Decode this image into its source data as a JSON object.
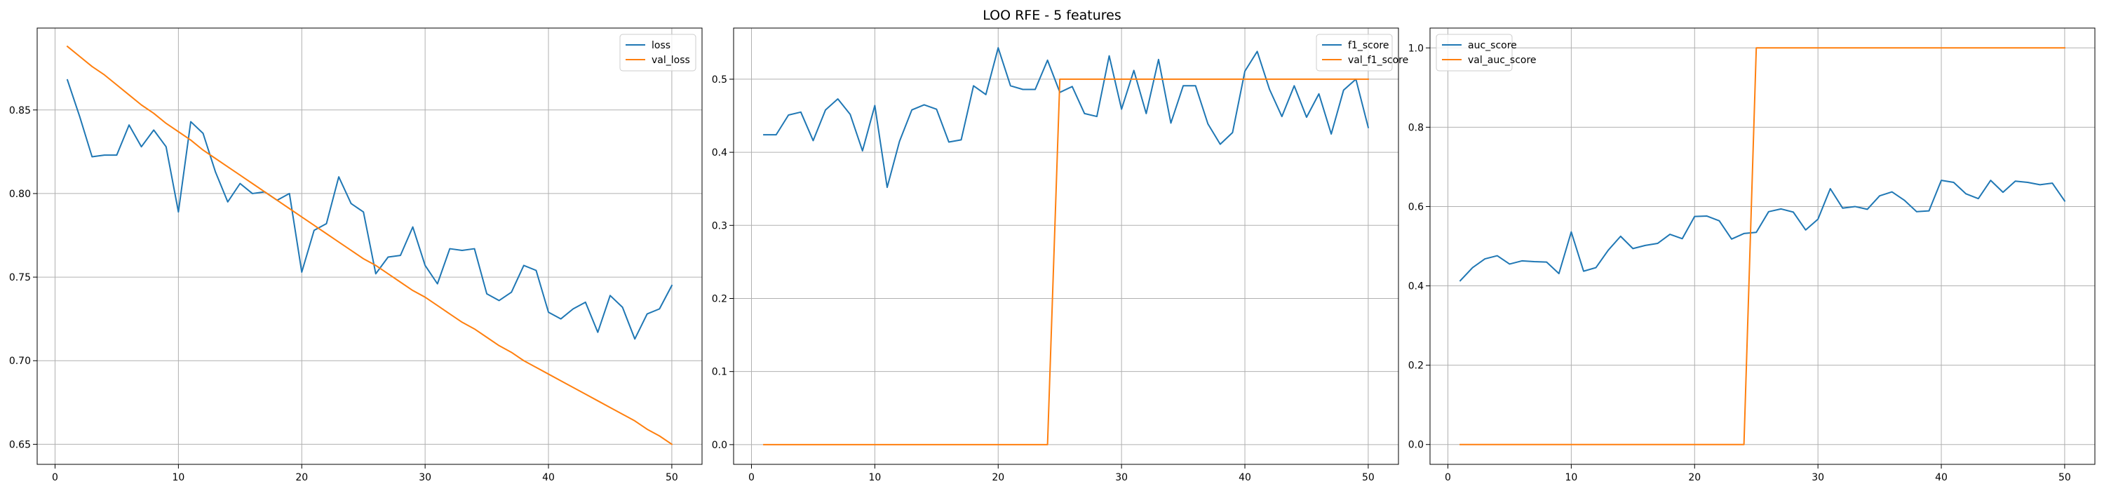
{
  "figure": {
    "title": "LOO RFE - 5 features",
    "colors": {
      "series1": "#1f77b4",
      "series2": "#ff7f0e",
      "grid": "#b0b0b0",
      "axis": "#000000"
    }
  },
  "chart_data": [
    {
      "type": "line",
      "xlim": [
        -1.45,
        52.45
      ],
      "ylim": [
        0.638,
        0.899
      ],
      "xticks": [
        0,
        10,
        20,
        30,
        40,
        50
      ],
      "yticks": [
        0.65,
        0.7,
        0.75,
        0.8,
        0.85
      ],
      "ytick_labels": [
        "0.65",
        "0.70",
        "0.75",
        "0.80",
        "0.85"
      ],
      "grid": true,
      "legend_position": "upper right",
      "x": [
        1,
        2,
        3,
        4,
        5,
        6,
        7,
        8,
        9,
        10,
        11,
        12,
        13,
        14,
        15,
        16,
        17,
        18,
        19,
        20,
        21,
        22,
        23,
        24,
        25,
        26,
        27,
        28,
        29,
        30,
        31,
        32,
        33,
        34,
        35,
        36,
        37,
        38,
        39,
        40,
        41,
        42,
        43,
        44,
        45,
        46,
        47,
        48,
        49,
        50
      ],
      "series": [
        {
          "name": "loss",
          "values": [
            0.868,
            0.846,
            0.822,
            0.823,
            0.823,
            0.841,
            0.828,
            0.838,
            0.828,
            0.789,
            0.843,
            0.836,
            0.813,
            0.795,
            0.806,
            0.8,
            0.801,
            0.796,
            0.8,
            0.753,
            0.778,
            0.782,
            0.81,
            0.794,
            0.789,
            0.752,
            0.762,
            0.763,
            0.78,
            0.757,
            0.746,
            0.767,
            0.766,
            0.767,
            0.74,
            0.736,
            0.741,
            0.757,
            0.754,
            0.729,
            0.725,
            0.731,
            0.735,
            0.717,
            0.739,
            0.732,
            0.713,
            0.728,
            0.731,
            0.745
          ]
        },
        {
          "name": "val_loss",
          "values": [
            0.888,
            0.882,
            0.876,
            0.871,
            0.865,
            0.859,
            0.853,
            0.848,
            0.842,
            0.837,
            0.832,
            0.826,
            0.821,
            0.816,
            0.811,
            0.806,
            0.801,
            0.796,
            0.791,
            0.786,
            0.781,
            0.776,
            0.771,
            0.766,
            0.761,
            0.757,
            0.752,
            0.747,
            0.742,
            0.738,
            0.733,
            0.728,
            0.723,
            0.719,
            0.714,
            0.709,
            0.705,
            0.7,
            0.696,
            0.692,
            0.688,
            0.684,
            0.68,
            0.676,
            0.672,
            0.668,
            0.664,
            0.659,
            0.655,
            0.65
          ]
        }
      ]
    },
    {
      "type": "line",
      "xlim": [
        -1.45,
        52.45
      ],
      "ylim": [
        -0.027,
        0.57
      ],
      "xticks": [
        0,
        10,
        20,
        30,
        40,
        50
      ],
      "yticks": [
        0.0,
        0.1,
        0.2,
        0.3,
        0.4,
        0.5
      ],
      "ytick_labels": [
        "0.0",
        "0.1",
        "0.2",
        "0.3",
        "0.4",
        "0.5"
      ],
      "grid": true,
      "legend_position": "upper right",
      "x": [
        1,
        2,
        3,
        4,
        5,
        6,
        7,
        8,
        9,
        10,
        11,
        12,
        13,
        14,
        15,
        16,
        17,
        18,
        19,
        20,
        21,
        22,
        23,
        24,
        25,
        26,
        27,
        28,
        29,
        30,
        31,
        32,
        33,
        34,
        35,
        36,
        37,
        38,
        39,
        40,
        41,
        42,
        43,
        44,
        45,
        46,
        47,
        48,
        49,
        50
      ],
      "series": [
        {
          "name": "f1_score",
          "values": [
            0.424,
            0.424,
            0.451,
            0.455,
            0.416,
            0.458,
            0.473,
            0.452,
            0.402,
            0.464,
            0.352,
            0.415,
            0.458,
            0.465,
            0.459,
            0.414,
            0.417,
            0.491,
            0.479,
            0.543,
            0.491,
            0.486,
            0.486,
            0.526,
            0.482,
            0.49,
            0.453,
            0.449,
            0.532,
            0.459,
            0.512,
            0.453,
            0.527,
            0.44,
            0.491,
            0.491,
            0.439,
            0.411,
            0.427,
            0.511,
            0.538,
            0.486,
            0.449,
            0.491,
            0.448,
            0.48,
            0.425,
            0.485,
            0.5,
            0.434
          ]
        },
        {
          "name": "val_f1_score",
          "values": [
            0,
            0,
            0,
            0,
            0,
            0,
            0,
            0,
            0,
            0,
            0,
            0,
            0,
            0,
            0,
            0,
            0,
            0,
            0,
            0,
            0,
            0,
            0,
            0,
            0.5,
            0.5,
            0.5,
            0.5,
            0.5,
            0.5,
            0.5,
            0.5,
            0.5,
            0.5,
            0.5,
            0.5,
            0.5,
            0.5,
            0.5,
            0.5,
            0.5,
            0.5,
            0.5,
            0.5,
            0.5,
            0.5,
            0.5,
            0.5,
            0.5,
            0.5
          ]
        }
      ]
    },
    {
      "type": "line",
      "xlim": [
        -1.45,
        52.45
      ],
      "ylim": [
        -0.05,
        1.05
      ],
      "xticks": [
        0,
        10,
        20,
        30,
        40,
        50
      ],
      "yticks": [
        0.0,
        0.2,
        0.4,
        0.6,
        0.8,
        1.0
      ],
      "ytick_labels": [
        "0.0",
        "0.2",
        "0.4",
        "0.6",
        "0.8",
        "1.0"
      ],
      "grid": true,
      "legend_position": "upper left",
      "x": [
        1,
        2,
        3,
        4,
        5,
        6,
        7,
        8,
        9,
        10,
        11,
        12,
        13,
        14,
        15,
        16,
        17,
        18,
        19,
        20,
        21,
        22,
        23,
        24,
        25,
        26,
        27,
        28,
        29,
        30,
        31,
        32,
        33,
        34,
        35,
        36,
        37,
        38,
        39,
        40,
        41,
        42,
        43,
        44,
        45,
        46,
        47,
        48,
        49,
        50
      ],
      "series": [
        {
          "name": "auc_score",
          "values": [
            0.413,
            0.446,
            0.468,
            0.476,
            0.455,
            0.463,
            0.461,
            0.46,
            0.431,
            0.536,
            0.437,
            0.446,
            0.49,
            0.525,
            0.494,
            0.502,
            0.507,
            0.53,
            0.519,
            0.575,
            0.576,
            0.564,
            0.518,
            0.532,
            0.535,
            0.587,
            0.594,
            0.586,
            0.541,
            0.568,
            0.645,
            0.596,
            0.6,
            0.593,
            0.627,
            0.637,
            0.616,
            0.587,
            0.589,
            0.666,
            0.661,
            0.632,
            0.62,
            0.666,
            0.636,
            0.664,
            0.661,
            0.655,
            0.659,
            0.614
          ]
        },
        {
          "name": "val_auc_score",
          "values": [
            0,
            0,
            0,
            0,
            0,
            0,
            0,
            0,
            0,
            0,
            0,
            0,
            0,
            0,
            0,
            0,
            0,
            0,
            0,
            0,
            0,
            0,
            0,
            0,
            1,
            1,
            1,
            1,
            1,
            1,
            1,
            1,
            1,
            1,
            1,
            1,
            1,
            1,
            1,
            1,
            1,
            1,
            1,
            1,
            1,
            1,
            1,
            1,
            1,
            1
          ]
        }
      ]
    }
  ]
}
